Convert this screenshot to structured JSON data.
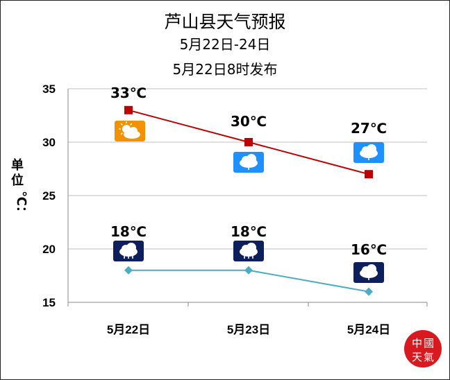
{
  "title": "芦山县天气预报",
  "subtitle": "5月22日-24日",
  "issued": "5月22日8时发布",
  "ylabel_cn": "单位",
  "ylabel_unit": "℃：",
  "colors": {
    "high": "#C00000",
    "low": "#4BACC6",
    "grid": "#bfbfbf",
    "axis": "#888888"
  },
  "chart_data": {
    "type": "line",
    "categories": [
      "5月22日",
      "5月23日",
      "5月24日"
    ],
    "ylim": [
      15,
      35
    ],
    "yticks": [
      15,
      20,
      25,
      30,
      35
    ],
    "ytick_labels": [
      "15",
      "20",
      "25",
      "30",
      "35"
    ],
    "grid": true,
    "series": [
      {
        "key": "high",
        "values": [
          33,
          30,
          27
        ],
        "labels": [
          "33℃",
          "30℃",
          "27℃"
        ],
        "marker": "square",
        "icons": [
          "partly-cloudy-icon",
          "light-rain-icon",
          "light-rain-icon"
        ]
      },
      {
        "key": "low",
        "values": [
          18,
          18,
          16
        ],
        "labels": [
          "18℃",
          "18℃",
          "16℃"
        ],
        "marker": "diamond",
        "icons": [
          "moderate-rain-icon",
          "moderate-rain-icon",
          "light-rain-icon"
        ]
      }
    ]
  },
  "logo_text": "中国天气"
}
